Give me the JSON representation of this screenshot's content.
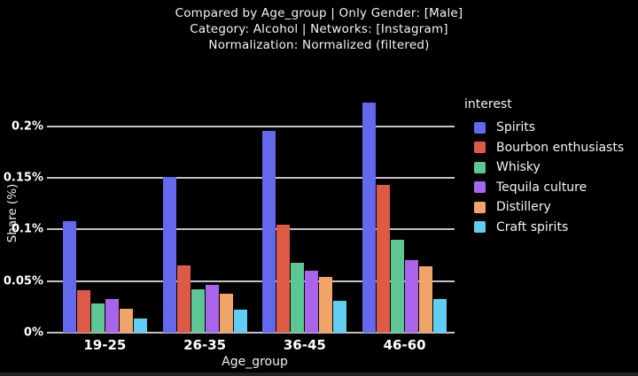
{
  "title": {
    "line1": "Compared by Age_group | Only Gender: [Male]",
    "line2": "Category: Alcohol | Networks: [Instagram]",
    "line3": "Normalization: Normalized (filtered)"
  },
  "chart_data": {
    "type": "bar",
    "grouping": "grouped",
    "categories": [
      "19-25",
      "26-35",
      "36-45",
      "46-60"
    ],
    "series": [
      {
        "name": "Spirits",
        "color": "#6468EC",
        "values": [
          0.108,
          0.151,
          0.196,
          0.223
        ]
      },
      {
        "name": "Bourbon enthusiasts",
        "color": "#DE5A47",
        "values": [
          0.041,
          0.065,
          0.105,
          0.143
        ]
      },
      {
        "name": "Whisky",
        "color": "#5CC794",
        "values": [
          0.028,
          0.042,
          0.068,
          0.09
        ]
      },
      {
        "name": "Tequila culture",
        "color": "#A865EC",
        "values": [
          0.033,
          0.046,
          0.06,
          0.07
        ]
      },
      {
        "name": "Distillery",
        "color": "#F0A468",
        "values": [
          0.023,
          0.038,
          0.054,
          0.064
        ]
      },
      {
        "name": "Craft spirits",
        "color": "#60CEF2",
        "values": [
          0.014,
          0.022,
          0.031,
          0.033
        ]
      }
    ],
    "xlabel": "Age_group",
    "ylabel": "Share (%)",
    "yticks": [
      {
        "value": 0.0,
        "label": "0%"
      },
      {
        "value": 0.05,
        "label": "0.05%"
      },
      {
        "value": 0.1,
        "label": "0.1%"
      },
      {
        "value": 0.15,
        "label": "0.15%"
      },
      {
        "value": 0.2,
        "label": "0.2%"
      }
    ],
    "ylim": [
      0,
      0.2325
    ],
    "legend_title": "interest",
    "legend_position": "right",
    "grid": true,
    "colors": {
      "background": "#000000",
      "text": "#f5f5f5",
      "gridline": "#c3c3c3"
    }
  }
}
